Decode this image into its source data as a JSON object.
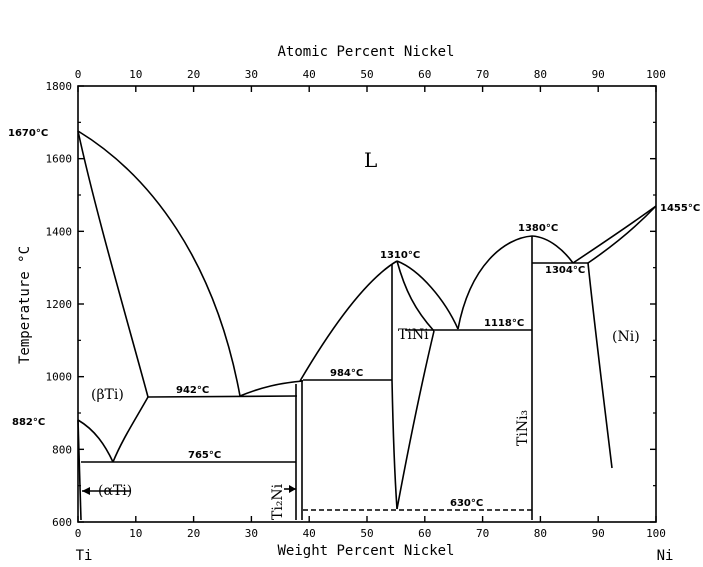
{
  "diagram": {
    "top_axis": {
      "title": "Atomic Percent Nickel",
      "ticks": [
        "0",
        "10",
        "20",
        "30",
        "40",
        "50",
        "60",
        "70",
        "80",
        "90",
        "100"
      ],
      "values": [
        0,
        10,
        20,
        30,
        40,
        50,
        60,
        70,
        80,
        90,
        100
      ]
    },
    "bottom_axis": {
      "title": "Weight Percent Nickel",
      "ticks": [
        "0",
        "10",
        "20",
        "30",
        "40",
        "50",
        "60",
        "70",
        "80",
        "90",
        "100"
      ],
      "values": [
        0,
        10,
        20,
        30,
        40,
        50,
        60,
        70,
        80,
        90,
        100
      ],
      "left_end": "Ti",
      "right_end": "Ni"
    },
    "left_axis": {
      "title": "Temperature °C",
      "ticks": [
        "600",
        "800",
        "1000",
        "1200",
        "1400",
        "1600",
        "1800"
      ],
      "values": [
        600,
        800,
        1000,
        1200,
        1400,
        1600,
        1800
      ],
      "range": [
        600,
        1800
      ]
    },
    "annotations": {
      "t1670": "1670°C",
      "t882": "882°C",
      "t942": "942°C",
      "t765": "765°C",
      "t984": "984°C",
      "t1310": "1310°C",
      "t1118": "1118°C",
      "t1380": "1380°C",
      "t1304": "1304°C",
      "t1455": "1455°C",
      "t630": "630°C"
    },
    "phases": {
      "liquid": "L",
      "beta_ti": "(βTi)",
      "alpha_ti": "(αTi)",
      "ti2ni": "Ti₂Ni",
      "tini": "TiNi",
      "tini3": "TiNi₃",
      "ni": "(Ni)"
    }
  }
}
